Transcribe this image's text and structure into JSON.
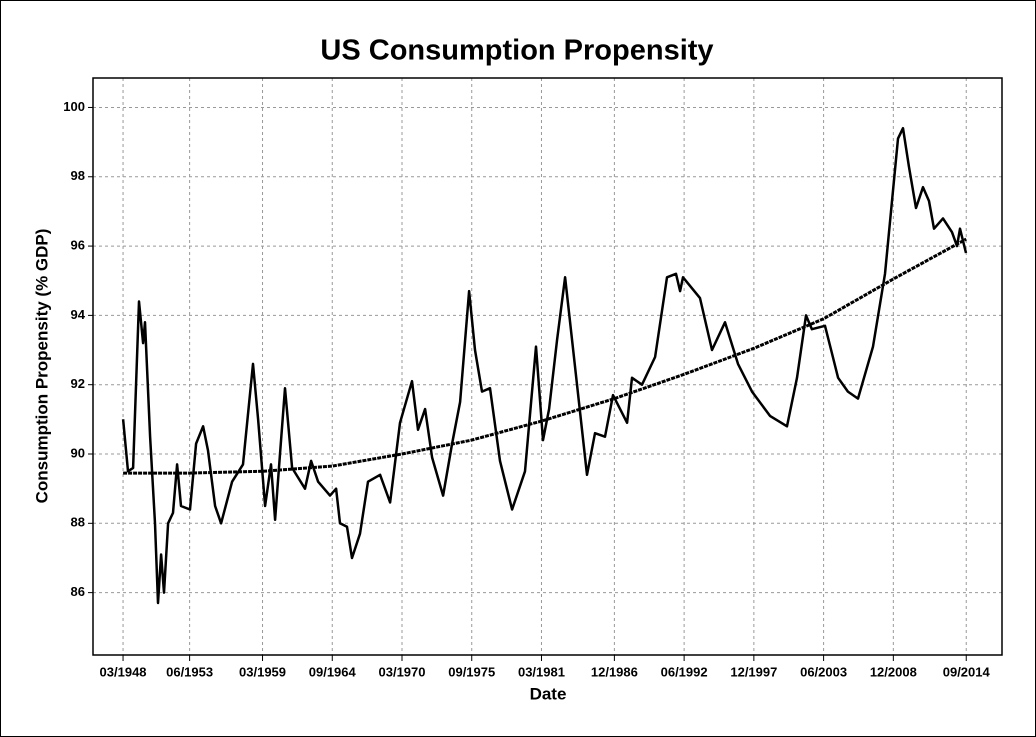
{
  "chart_data": {
    "type": "line",
    "title": "US Consumption Propensity",
    "x_label": "Date",
    "y_label": "Consumption Propensity (% GDP)",
    "xlim": [
      1945.63,
      2017.32
    ],
    "ylim": [
      84.2,
      100.85
    ],
    "xticks": [
      {
        "value": 1948.0,
        "label": "03/1948"
      },
      {
        "value": 1953.25,
        "label": "06/1953"
      },
      {
        "value": 1959.0,
        "label": "03/1959"
      },
      {
        "value": 1964.5,
        "label": "09/1964"
      },
      {
        "value": 1970.0,
        "label": "03/1970"
      },
      {
        "value": 1975.5,
        "label": "09/1975"
      },
      {
        "value": 1981.0,
        "label": "03/1981"
      },
      {
        "value": 1986.75,
        "label": "12/1986"
      },
      {
        "value": 1992.25,
        "label": "06/1992"
      },
      {
        "value": 1997.75,
        "label": "12/1997"
      },
      {
        "value": 2003.25,
        "label": "06/2003"
      },
      {
        "value": 2008.75,
        "label": "12/2008"
      },
      {
        "value": 2014.5,
        "label": "09/2014"
      }
    ],
    "yticks": [
      86,
      88,
      90,
      92,
      94,
      96,
      98,
      100
    ],
    "grid": true,
    "series": [
      {
        "color": "#000000",
        "x": [
          1948.0,
          1948.39,
          1948.79,
          1949.26,
          1949.58,
          1949.73,
          1950.13,
          1950.52,
          1950.76,
          1951.0,
          1951.23,
          1951.55,
          1951.94,
          1952.26,
          1952.57,
          1953.28,
          1953.76,
          1954.31,
          1954.7,
          1955.26,
          1955.73,
          1956.6,
          1957.46,
          1958.25,
          1958.65,
          1959.2,
          1959.67,
          1959.99,
          1960.38,
          1960.77,
          1961.33,
          1962.35,
          1962.83,
          1963.38,
          1964.32,
          1964.8,
          1965.11,
          1965.66,
          1966.06,
          1966.69,
          1967.32,
          1968.27,
          1969.06,
          1969.84,
          1970.79,
          1971.26,
          1971.82,
          1972.37,
          1973.24,
          1973.95,
          1974.58,
          1975.29,
          1975.76,
          1976.31,
          1976.94,
          1977.73,
          1978.68,
          1979.7,
          1980.57,
          1981.12,
          1981.6,
          1982.23,
          1982.86,
          1983.65,
          1984.59,
          1985.22,
          1986.01,
          1986.64,
          1987.75,
          1988.14,
          1988.93,
          1989.96,
          1990.9,
          1991.61,
          1991.93,
          1992.16,
          1993.5,
          1994.45,
          1995.47,
          1996.5,
          1997.6,
          1999.02,
          2000.36,
          2001.15,
          2001.86,
          2002.33,
          2003.36,
          2003.91,
          2004.39,
          2005.17,
          2005.96,
          2007.15,
          2008.09,
          2009.12,
          2009.51,
          2009.98,
          2010.54,
          2011.09,
          2011.56,
          2011.96,
          2012.67,
          2013.38,
          2013.77,
          2014.01,
          2014.48
        ],
        "values": [
          91.0,
          89.5,
          89.6,
          94.4,
          93.2,
          93.8,
          90.5,
          88.0,
          85.7,
          87.1,
          86.0,
          88.0,
          88.3,
          89.7,
          88.5,
          88.4,
          90.3,
          90.8,
          90.1,
          88.5,
          88.0,
          89.2,
          89.7,
          92.6,
          91.0,
          88.5,
          89.7,
          88.1,
          90.0,
          91.9,
          89.6,
          89.0,
          89.8,
          89.2,
          88.8,
          89.0,
          88.0,
          87.9,
          87.0,
          87.7,
          89.2,
          89.4,
          88.6,
          90.9,
          92.1,
          90.7,
          91.3,
          89.9,
          88.8,
          90.3,
          91.5,
          94.7,
          93.0,
          91.8,
          91.9,
          89.8,
          88.4,
          89.5,
          93.1,
          90.4,
          91.3,
          93.3,
          95.1,
          92.5,
          89.4,
          90.6,
          90.5,
          91.7,
          90.9,
          92.2,
          92.0,
          92.8,
          95.1,
          95.2,
          94.7,
          95.1,
          94.5,
          93.0,
          93.8,
          92.6,
          91.8,
          91.1,
          90.8,
          92.2,
          94.0,
          93.6,
          93.7,
          92.9,
          92.2,
          91.8,
          91.6,
          93.1,
          95.2,
          99.1,
          99.4,
          98.3,
          97.1,
          97.7,
          97.3,
          96.5,
          96.8,
          96.4,
          96.0,
          96.5,
          95.8
        ]
      },
      {
        "color": "#000000",
        "x": [
          1948.0,
          1953.25,
          1959.0,
          1964.5,
          1970.0,
          1975.5,
          1981.0,
          1986.75,
          1992.25,
          1997.75,
          2003.25,
          2008.75,
          2014.5
        ],
        "values": [
          89.45,
          89.45,
          89.5,
          89.65,
          90.0,
          90.4,
          90.95,
          91.6,
          92.3,
          93.05,
          93.9,
          95.05,
          96.2
        ]
      }
    ]
  }
}
